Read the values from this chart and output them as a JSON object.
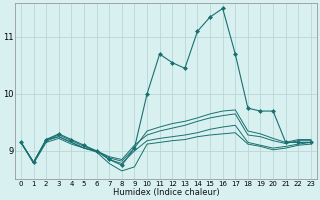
{
  "xlabel": "Humidex (Indice chaleur)",
  "ylabel": "",
  "bg_color": "#d8f0f0",
  "grid_color": "#b8d8d8",
  "line_color": "#1a7070",
  "xlim": [
    -0.5,
    23.5
  ],
  "ylim": [
    8.5,
    11.6
  ],
  "yticks": [
    9,
    10,
    11
  ],
  "xticks": [
    0,
    1,
    2,
    3,
    4,
    5,
    6,
    7,
    8,
    9,
    10,
    11,
    12,
    13,
    14,
    15,
    16,
    17,
    18,
    19,
    20,
    21,
    22,
    23
  ],
  "series": [
    {
      "x": [
        0,
        1,
        2,
        3,
        4,
        5,
        6,
        7,
        8,
        9,
        10,
        11,
        12,
        13,
        14,
        15,
        16,
        17,
        18,
        19,
        20,
        21,
        22,
        23
      ],
      "y": [
        9.15,
        8.8,
        9.2,
        9.3,
        9.2,
        9.1,
        9.0,
        8.85,
        8.75,
        9.05,
        10.0,
        10.7,
        10.55,
        10.45,
        11.1,
        11.35,
        11.5,
        10.7,
        9.75,
        9.7,
        9.7,
        9.15,
        9.15,
        9.15
      ],
      "marker": "D",
      "markersize": 2.0,
      "lw": 0.8
    },
    {
      "x": [
        0,
        1,
        2,
        3,
        4,
        5,
        6,
        7,
        8,
        9,
        10,
        11,
        12,
        13,
        14,
        15,
        16,
        17,
        18,
        19,
        20,
        21,
        22,
        23
      ],
      "y": [
        9.15,
        8.8,
        9.2,
        9.25,
        9.15,
        9.05,
        9.0,
        8.88,
        8.82,
        9.05,
        9.35,
        9.42,
        9.48,
        9.52,
        9.58,
        9.65,
        9.7,
        9.72,
        9.35,
        9.3,
        9.22,
        9.15,
        9.2,
        9.2
      ],
      "marker": null,
      "markersize": 0,
      "lw": 0.7
    },
    {
      "x": [
        0,
        1,
        2,
        3,
        4,
        5,
        6,
        7,
        8,
        9,
        10,
        11,
        12,
        13,
        14,
        15,
        16,
        17,
        18,
        19,
        20,
        21,
        22,
        23
      ],
      "y": [
        9.15,
        8.8,
        9.2,
        9.28,
        9.18,
        9.08,
        9.0,
        8.9,
        8.85,
        9.1,
        9.28,
        9.35,
        9.4,
        9.45,
        9.52,
        9.58,
        9.62,
        9.65,
        9.28,
        9.25,
        9.18,
        9.13,
        9.18,
        9.18
      ],
      "marker": null,
      "markersize": 0,
      "lw": 0.7
    },
    {
      "x": [
        0,
        1,
        2,
        3,
        4,
        5,
        6,
        7,
        8,
        9,
        10,
        11,
        12,
        13,
        14,
        15,
        16,
        17,
        18,
        19,
        20,
        21,
        22,
        23
      ],
      "y": [
        9.15,
        8.8,
        9.18,
        9.25,
        9.15,
        9.05,
        9.0,
        8.85,
        8.78,
        9.0,
        9.18,
        9.22,
        9.25,
        9.28,
        9.32,
        9.38,
        9.42,
        9.45,
        9.15,
        9.1,
        9.05,
        9.08,
        9.12,
        9.15
      ],
      "marker": null,
      "markersize": 0,
      "lw": 0.7
    },
    {
      "x": [
        0,
        1,
        2,
        3,
        4,
        5,
        6,
        7,
        8,
        9,
        10,
        11,
        12,
        13,
        14,
        15,
        16,
        17,
        18,
        19,
        20,
        21,
        22,
        23
      ],
      "y": [
        9.15,
        8.78,
        9.15,
        9.22,
        9.12,
        9.05,
        8.98,
        8.78,
        8.65,
        8.72,
        9.12,
        9.15,
        9.18,
        9.2,
        9.25,
        9.28,
        9.3,
        9.32,
        9.12,
        9.08,
        9.02,
        9.05,
        9.1,
        9.12
      ],
      "marker": null,
      "markersize": 0,
      "lw": 0.7
    }
  ]
}
